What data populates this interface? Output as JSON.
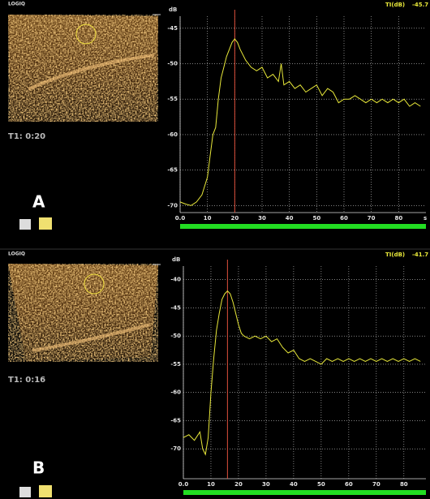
{
  "chart_data": [
    {
      "type": "line",
      "logo": "LOGIQ",
      "timer": "T1: 0:20",
      "panel_label": "A",
      "y_label": "dB",
      "readout_label": "TI(dB)",
      "readout_value": "-45.7",
      "x_unit": "s",
      "color": "#e8e83a",
      "peak_color": "#e0503c",
      "peak_time": 20,
      "grid": true,
      "xlim": [
        0,
        90
      ],
      "xticks": [
        {
          "value": 0,
          "label": "0.0"
        },
        10,
        20,
        30,
        40,
        50,
        60,
        70,
        80
      ],
      "ylim": [
        -71,
        -43.3
      ],
      "yticks": [
        -45,
        -50,
        -55,
        -60,
        -65,
        -70
      ],
      "x": [
        0,
        2,
        4,
        6,
        8,
        10,
        11,
        12,
        13,
        14,
        15,
        16,
        17,
        18,
        19,
        20,
        21,
        22,
        24,
        26,
        28,
        30,
        32,
        34,
        36,
        37,
        38,
        40,
        42,
        44,
        46,
        48,
        50,
        52,
        54,
        56,
        58,
        60,
        62,
        64,
        66,
        68,
        70,
        72,
        74,
        76,
        78,
        80,
        82,
        84,
        86,
        88
      ],
      "values": [
        -69.5,
        -69.8,
        -70,
        -69.5,
        -68.5,
        -66,
        -63,
        -60,
        -59,
        -55,
        -52,
        -50.5,
        -49,
        -48,
        -47,
        -46.5,
        -47,
        -48,
        -49.5,
        -50.5,
        -51,
        -50.5,
        -52,
        -51.5,
        -52.5,
        -50,
        -53,
        -52.5,
        -53.5,
        -53,
        -54,
        -53.5,
        -53,
        -54.5,
        -53.5,
        -54,
        -55.5,
        -55,
        -55,
        -54.5,
        -55,
        -55.5,
        -55,
        -55.5,
        -55,
        -55.5,
        -55,
        -55.5,
        -55,
        -56,
        -55.5,
        -56
      ]
    },
    {
      "type": "line",
      "logo": "LOGIQ",
      "timer": "T1: 0:16",
      "panel_label": "B",
      "y_label": "dB",
      "readout_label": "TI(dB)",
      "readout_value": "-41.7",
      "color": "#e8e83a",
      "peak_color": "#e0503c",
      "peak_time": 16,
      "grid": true,
      "xlim": [
        0,
        88
      ],
      "xticks": [
        {
          "value": 0,
          "label": "0.0"
        },
        10,
        20,
        30,
        40,
        50,
        60,
        70,
        80
      ],
      "ylim": [
        -75.3,
        -37.6
      ],
      "yticks": [
        -40,
        -45,
        -50,
        -55,
        -60,
        -65,
        -70
      ],
      "x": [
        0,
        2,
        4,
        6,
        7,
        8,
        9,
        10,
        11,
        12,
        13,
        14,
        15,
        16,
        17,
        18,
        19,
        20,
        21,
        22,
        24,
        26,
        28,
        30,
        32,
        34,
        36,
        38,
        40,
        42,
        44,
        46,
        48,
        50,
        52,
        54,
        56,
        58,
        60,
        62,
        64,
        66,
        68,
        70,
        72,
        74,
        76,
        78,
        80,
        82,
        84,
        86
      ],
      "values": [
        -68,
        -67.5,
        -68.5,
        -67,
        -70,
        -71,
        -68,
        -60,
        -54,
        -49,
        -46,
        -43.5,
        -42.5,
        -42,
        -42.5,
        -44,
        -46,
        -48,
        -49.5,
        -50,
        -50.5,
        -50,
        -50.5,
        -50,
        -51,
        -50.5,
        -52,
        -53,
        -52.5,
        -54,
        -54.5,
        -54,
        -54.5,
        -55,
        -54,
        -54.5,
        -54,
        -54.5,
        -54,
        -54.5,
        -54,
        -54.5,
        -54,
        -54.5,
        -54,
        -54.5,
        -54,
        -54.5,
        -54,
        -54.5,
        -54,
        -54.5
      ]
    }
  ]
}
